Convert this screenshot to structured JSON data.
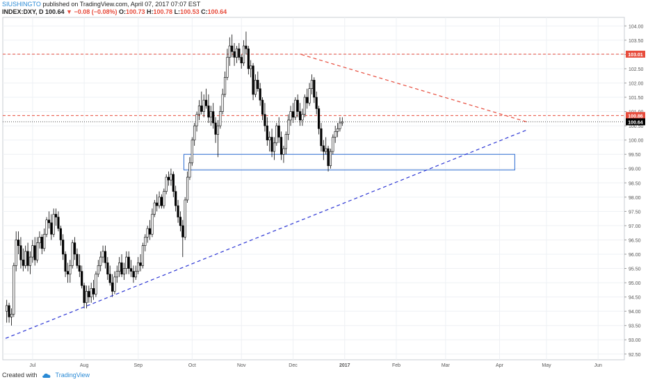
{
  "header": {
    "author": "SIUSHINGTO",
    "published": " published on TradingView.com, April 07, 2017 07:07 EST",
    "symbol": "INDEX:DXY, D",
    "last": " 100.64 ",
    "change": "▼ −0.08 (−0.08%)",
    "open_label": " O:",
    "open": "100.73",
    "high_label": " H:",
    "high": "100.78",
    "low_label": " L:",
    "low": "100.53",
    "close_label": " C:",
    "close": "100.64"
  },
  "footer": {
    "created_with": "Created with",
    "brand": "TradingView"
  },
  "colors": {
    "up": "#ffffff",
    "down": "#000000",
    "wick": "#000000",
    "resistance": "#e74c3c",
    "support": "#2b35d4",
    "box": "#2a6bd1",
    "grid": "#eef0f4",
    "axis_text": "#555555"
  },
  "chart_data": {
    "type": "candlestick",
    "x_labels": [
      "Jul",
      "Aug",
      "Sep",
      "Oct",
      "Nov",
      "Dec",
      "2017",
      "Feb",
      "Mar",
      "Apr",
      "May",
      "Jun"
    ],
    "y_ticks": [
      "92.50",
      "93.00",
      "93.50",
      "94.00",
      "94.50",
      "95.00",
      "95.50",
      "96.00",
      "96.50",
      "97.00",
      "97.50",
      "98.00",
      "98.50",
      "99.00",
      "99.50",
      "100.00",
      "100.50",
      "101.00",
      "101.50",
      "102.00",
      "102.50",
      "103.00",
      "103.50",
      "104.00"
    ],
    "ylim": [
      92.3,
      104.3
    ],
    "price_labels": [
      {
        "text": "103.01",
        "value": 103.01,
        "color": "#e74c3c"
      },
      {
        "text": "100.86",
        "value": 100.86,
        "color": "#e74c3c"
      },
      {
        "text": "100.64",
        "value": 100.64,
        "color": "#000000"
      }
    ],
    "hlines": [
      {
        "value": 103.01,
        "style": "dashed",
        "color": "#e74c3c"
      },
      {
        "value": 100.86,
        "style": "dashed",
        "color": "#e74c3c"
      },
      {
        "value": 100.64,
        "style": "dotted",
        "color": "#555555"
      }
    ],
    "trendlines": [
      {
        "name": "descending resistance",
        "from": {
          "bar": 126,
          "price": 103.0
        },
        "to": {
          "bar": 222,
          "price": 100.64
        },
        "color": "#e74c3c"
      },
      {
        "name": "ascending support",
        "from": {
          "bar": 0,
          "price": 93.05
        },
        "to": {
          "bar": 222,
          "price": 100.35
        },
        "color": "#2b35d4"
      }
    ],
    "zone": {
      "from_bar": 76,
      "to_bar": 217,
      "low": 98.95,
      "high": 99.5
    },
    "ohlc": [
      [
        94.0,
        94.4,
        93.6,
        94.2
      ],
      [
        94.2,
        94.3,
        93.6,
        93.8
      ],
      [
        93.8,
        94.1,
        93.5,
        93.9
      ],
      [
        93.9,
        95.7,
        93.8,
        95.6
      ],
      [
        95.6,
        96.8,
        95.4,
        96.5
      ],
      [
        96.5,
        96.8,
        96.0,
        96.3
      ],
      [
        96.3,
        96.6,
        95.5,
        95.8
      ],
      [
        95.8,
        96.2,
        95.4,
        95.6
      ],
      [
        95.6,
        96.3,
        95.5,
        96.1
      ],
      [
        96.1,
        96.4,
        95.4,
        95.6
      ],
      [
        95.6,
        96.1,
        95.3,
        95.9
      ],
      [
        95.9,
        96.5,
        95.7,
        96.3
      ],
      [
        96.3,
        96.6,
        95.6,
        95.8
      ],
      [
        95.8,
        96.6,
        95.7,
        96.4
      ],
      [
        96.4,
        96.8,
        96.2,
        96.6
      ],
      [
        96.6,
        96.7,
        96.0,
        96.2
      ],
      [
        96.2,
        96.9,
        96.1,
        96.7
      ],
      [
        96.7,
        97.3,
        96.6,
        97.2
      ],
      [
        97.2,
        97.5,
        96.9,
        97.1
      ],
      [
        97.1,
        97.4,
        96.5,
        96.7
      ],
      [
        96.7,
        97.6,
        96.6,
        97.4
      ],
      [
        97.4,
        97.6,
        97.0,
        97.3
      ],
      [
        97.3,
        97.5,
        96.8,
        96.9
      ],
      [
        96.9,
        97.0,
        96.3,
        96.5
      ],
      [
        96.5,
        96.7,
        95.8,
        96.0
      ],
      [
        96.0,
        96.1,
        95.2,
        95.4
      ],
      [
        95.4,
        95.7,
        95.0,
        95.3
      ],
      [
        95.3,
        95.8,
        95.0,
        95.6
      ],
      [
        95.6,
        96.5,
        95.5,
        96.4
      ],
      [
        96.4,
        96.6,
        95.8,
        96.0
      ],
      [
        96.0,
        96.2,
        95.5,
        95.6
      ],
      [
        95.6,
        96.0,
        95.2,
        95.4
      ],
      [
        95.4,
        95.6,
        94.8,
        94.9
      ],
      [
        94.9,
        95.0,
        94.1,
        94.3
      ],
      [
        94.3,
        94.9,
        94.1,
        94.7
      ],
      [
        94.7,
        94.9,
        94.3,
        94.5
      ],
      [
        94.5,
        95.0,
        94.3,
        94.8
      ],
      [
        94.8,
        95.1,
        94.4,
        94.6
      ],
      [
        94.6,
        95.4,
        94.5,
        95.3
      ],
      [
        95.3,
        95.8,
        95.2,
        95.6
      ],
      [
        95.6,
        96.1,
        95.4,
        95.9
      ],
      [
        95.9,
        96.3,
        95.7,
        96.1
      ],
      [
        96.1,
        96.3,
        95.5,
        95.7
      ],
      [
        95.7,
        95.9,
        95.1,
        95.3
      ],
      [
        95.3,
        95.6,
        94.9,
        95.0
      ],
      [
        95.0,
        95.3,
        94.5,
        94.7
      ],
      [
        94.7,
        95.4,
        94.6,
        95.2
      ],
      [
        95.2,
        95.6,
        95.0,
        95.4
      ],
      [
        95.4,
        95.9,
        95.2,
        95.7
      ],
      [
        95.7,
        96.0,
        95.2,
        95.3
      ],
      [
        95.3,
        95.7,
        95.1,
        95.5
      ],
      [
        95.5,
        96.1,
        95.3,
        95.9
      ],
      [
        95.9,
        96.1,
        95.3,
        95.5
      ],
      [
        95.5,
        95.8,
        95.2,
        95.4
      ],
      [
        95.4,
        95.6,
        95.0,
        95.2
      ],
      [
        95.2,
        95.6,
        95.1,
        95.4
      ],
      [
        95.4,
        95.9,
        95.3,
        95.7
      ],
      [
        95.7,
        96.0,
        95.4,
        95.6
      ],
      [
        95.6,
        96.4,
        95.5,
        96.3
      ],
      [
        96.3,
        96.7,
        96.1,
        96.6
      ],
      [
        96.6,
        97.0,
        96.4,
        96.9
      ],
      [
        96.9,
        97.2,
        96.5,
        96.7
      ],
      [
        96.7,
        97.6,
        96.6,
        97.4
      ],
      [
        97.4,
        97.9,
        97.3,
        97.8
      ],
      [
        97.8,
        98.1,
        97.5,
        97.7
      ],
      [
        97.7,
        98.2,
        97.6,
        98.0
      ],
      [
        98.0,
        98.1,
        97.6,
        97.7
      ],
      [
        97.7,
        98.3,
        97.6,
        98.2
      ],
      [
        98.2,
        98.8,
        98.1,
        98.7
      ],
      [
        98.7,
        98.9,
        98.4,
        98.6
      ],
      [
        98.6,
        99.0,
        98.4,
        98.8
      ],
      [
        98.8,
        98.9,
        98.0,
        98.2
      ],
      [
        98.2,
        98.4,
        97.5,
        97.7
      ],
      [
        97.7,
        97.9,
        97.1,
        97.3
      ],
      [
        97.3,
        97.5,
        96.8,
        97.0
      ],
      [
        97.0,
        97.2,
        95.9,
        96.6
      ],
      [
        96.6,
        98.0,
        96.5,
        97.9
      ],
      [
        97.9,
        98.9,
        97.8,
        98.7
      ],
      [
        98.7,
        99.4,
        98.6,
        99.2
      ],
      [
        99.2,
        100.1,
        99.1,
        100.0
      ],
      [
        100.0,
        100.6,
        99.8,
        100.5
      ],
      [
        100.5,
        101.0,
        100.3,
        100.9
      ],
      [
        100.9,
        101.4,
        100.7,
        101.2
      ],
      [
        101.2,
        101.7,
        100.9,
        101.0
      ],
      [
        101.0,
        101.6,
        100.8,
        101.4
      ],
      [
        101.4,
        101.8,
        101.1,
        101.2
      ],
      [
        101.2,
        101.6,
        100.6,
        100.8
      ],
      [
        100.8,
        101.2,
        100.5,
        101.0
      ],
      [
        101.0,
        101.3,
        100.4,
        100.6
      ],
      [
        100.6,
        100.8,
        99.9,
        100.2
      ],
      [
        100.2,
        100.7,
        99.4,
        100.5
      ],
      [
        100.5,
        101.2,
        100.4,
        101.0
      ],
      [
        101.0,
        101.8,
        100.9,
        101.6
      ],
      [
        101.6,
        102.4,
        101.5,
        102.2
      ],
      [
        102.2,
        103.2,
        102.1,
        102.9
      ],
      [
        102.9,
        103.6,
        102.6,
        103.3
      ],
      [
        103.3,
        103.7,
        102.9,
        103.1
      ],
      [
        103.1,
        103.4,
        102.6,
        102.9
      ],
      [
        102.9,
        103.3,
        102.7,
        103.2
      ],
      [
        103.2,
        103.4,
        102.8,
        102.9
      ],
      [
        102.9,
        103.0,
        102.5,
        102.7
      ],
      [
        102.7,
        103.5,
        102.6,
        103.3
      ],
      [
        103.3,
        103.8,
        103.0,
        103.2
      ],
      [
        103.2,
        103.3,
        102.3,
        102.5
      ],
      [
        102.5,
        102.8,
        102.2,
        102.6
      ],
      [
        102.6,
        102.7,
        101.4,
        101.6
      ],
      [
        101.6,
        102.3,
        101.5,
        102.1
      ],
      [
        102.1,
        102.4,
        101.7,
        101.8
      ],
      [
        101.8,
        102.0,
        101.2,
        101.4
      ],
      [
        101.4,
        101.5,
        100.7,
        100.9
      ],
      [
        100.9,
        101.3,
        100.3,
        100.5
      ],
      [
        100.5,
        100.8,
        99.8,
        100.0
      ],
      [
        100.0,
        100.3,
        99.6,
        100.1
      ],
      [
        100.1,
        100.4,
        99.4,
        99.6
      ],
      [
        99.6,
        100.1,
        99.3,
        99.9
      ],
      [
        99.9,
        100.6,
        99.8,
        100.5
      ],
      [
        100.5,
        100.8,
        99.9,
        100.1
      ],
      [
        100.1,
        100.3,
        99.3,
        99.5
      ],
      [
        99.5,
        99.8,
        99.2,
        99.7
      ],
      [
        99.7,
        100.3,
        99.5,
        100.2
      ],
      [
        100.2,
        100.9,
        100.0,
        100.7
      ],
      [
        100.7,
        101.2,
        100.5,
        101.0
      ],
      [
        101.0,
        101.3,
        100.6,
        100.8
      ],
      [
        100.8,
        101.5,
        100.7,
        101.4
      ],
      [
        101.4,
        101.6,
        100.8,
        101.0
      ],
      [
        101.0,
        101.3,
        100.5,
        100.7
      ],
      [
        100.7,
        101.1,
        100.5,
        100.9
      ],
      [
        100.9,
        101.6,
        100.8,
        101.5
      ],
      [
        101.5,
        101.8,
        101.1,
        101.3
      ],
      [
        101.3,
        102.0,
        101.2,
        101.8
      ],
      [
        101.8,
        102.3,
        101.6,
        102.1
      ],
      [
        102.1,
        102.2,
        101.3,
        101.5
      ],
      [
        101.5,
        101.7,
        100.9,
        101.1
      ],
      [
        101.1,
        101.2,
        100.2,
        100.4
      ],
      [
        100.4,
        100.6,
        99.6,
        99.8
      ],
      [
        99.8,
        100.0,
        99.3,
        99.6
      ],
      [
        99.6,
        100.1,
        99.5,
        99.7
      ],
      [
        99.7,
        99.8,
        98.9,
        99.1
      ],
      [
        99.1,
        99.7,
        99.0,
        99.6
      ],
      [
        99.6,
        100.2,
        99.5,
        100.1
      ],
      [
        100.1,
        100.5,
        99.9,
        100.3
      ],
      [
        100.3,
        100.6,
        100.1,
        100.4
      ],
      [
        100.4,
        100.8,
        100.3,
        100.6
      ],
      [
        100.6,
        100.8,
        100.5,
        100.64
      ]
    ]
  }
}
